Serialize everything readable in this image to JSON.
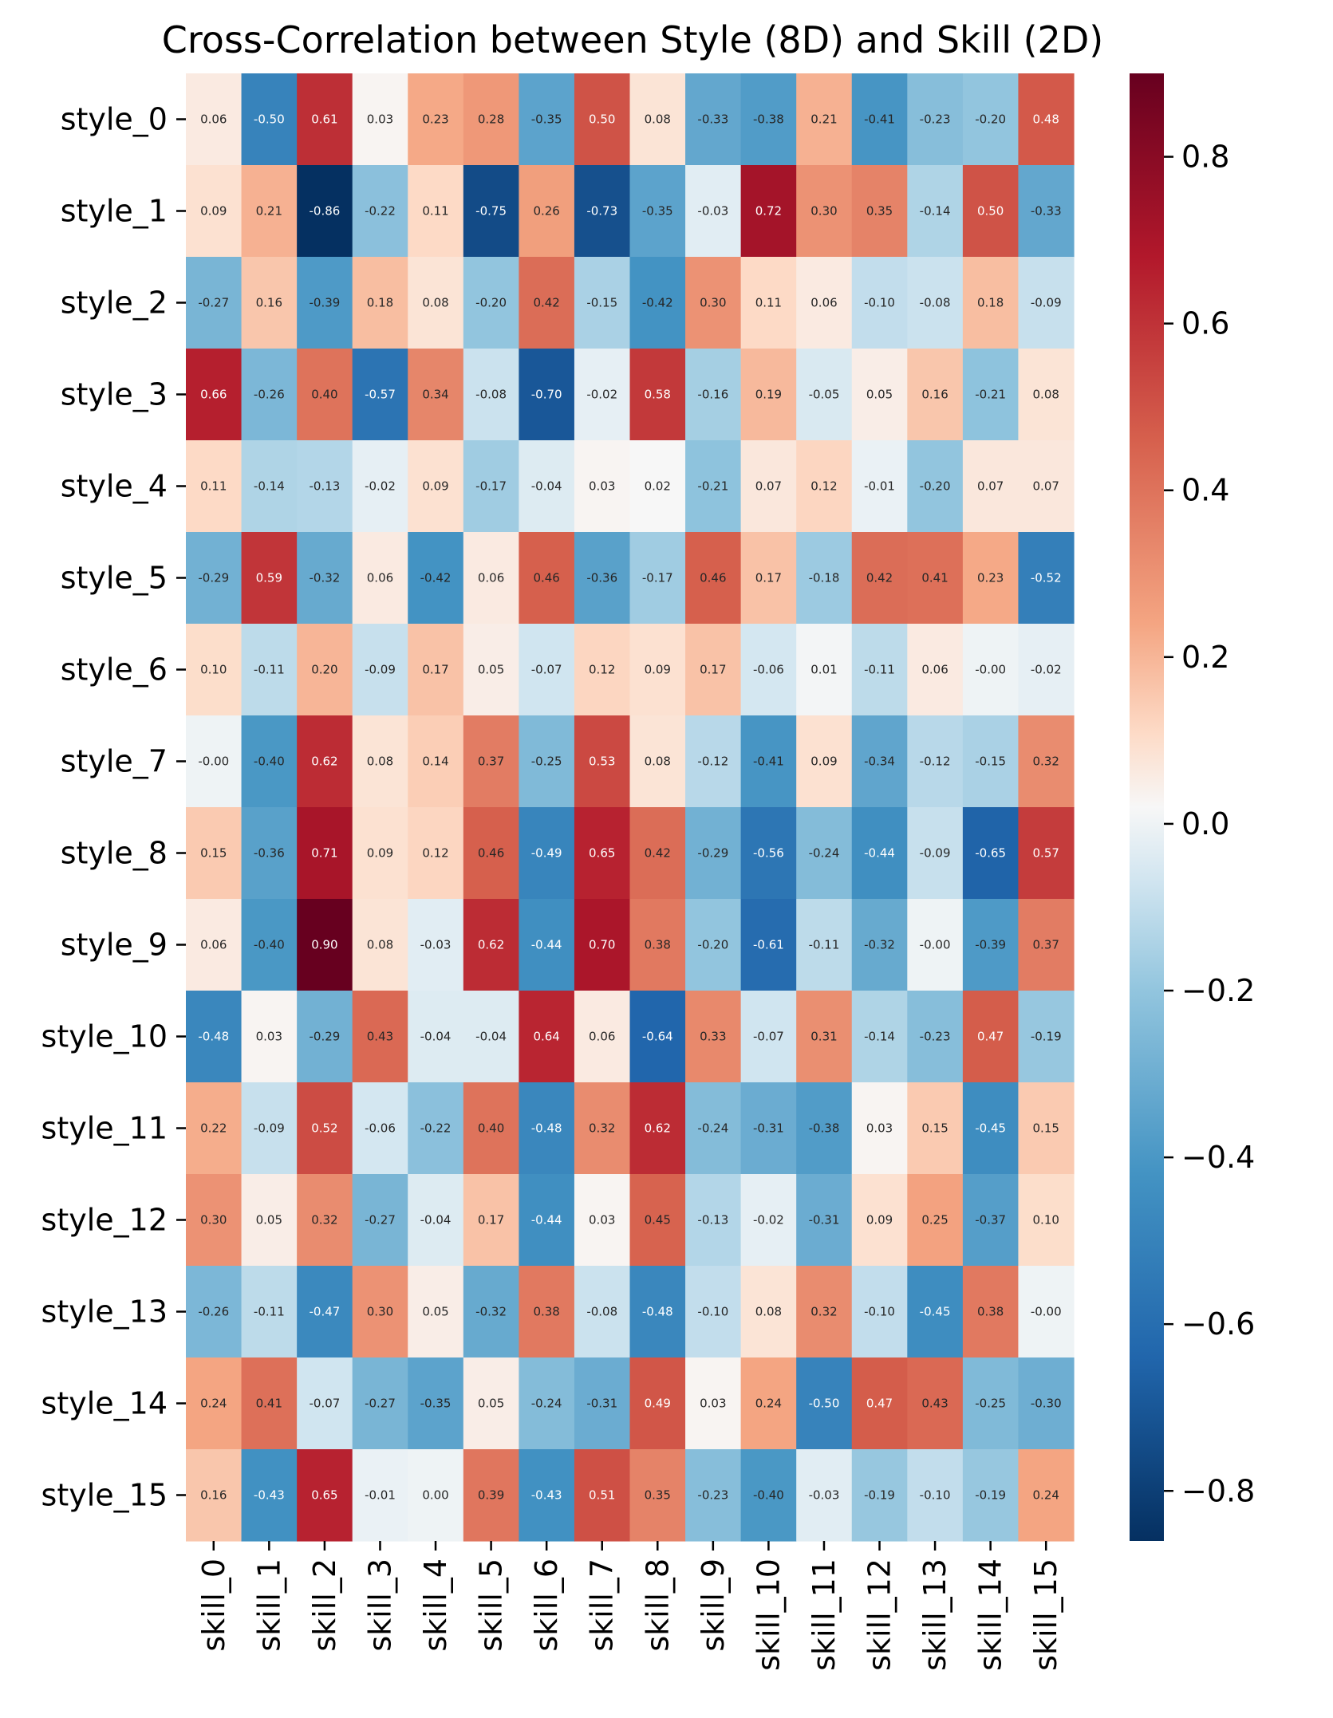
{
  "chart_data": {
    "type": "heatmap",
    "title": "Cross-Correlation between Style (8D) and Skill (2D)",
    "xlabel": "",
    "ylabel": "",
    "rows": [
      "style_0",
      "style_1",
      "style_2",
      "style_3",
      "style_4",
      "style_5",
      "style_6",
      "style_7",
      "style_8",
      "style_9",
      "style_10",
      "style_11",
      "style_12",
      "style_13",
      "style_14",
      "style_15"
    ],
    "columns": [
      "skill_0",
      "skill_1",
      "skill_2",
      "skill_3",
      "skill_4",
      "skill_5",
      "skill_6",
      "skill_7",
      "skill_8",
      "skill_9",
      "skill_10",
      "skill_11",
      "skill_12",
      "skill_13",
      "skill_14",
      "skill_15"
    ],
    "values": [
      [
        0.06,
        -0.5,
        0.61,
        0.03,
        0.23,
        0.28,
        -0.35,
        0.5,
        0.08,
        -0.33,
        -0.38,
        0.21,
        -0.41,
        -0.23,
        -0.2,
        0.48
      ],
      [
        0.09,
        0.21,
        -0.86,
        -0.22,
        0.11,
        -0.75,
        0.26,
        -0.73,
        -0.35,
        -0.03,
        0.72,
        0.3,
        0.35,
        -0.14,
        0.5,
        -0.33
      ],
      [
        -0.27,
        0.16,
        -0.39,
        0.18,
        0.08,
        -0.2,
        0.42,
        -0.15,
        -0.42,
        0.3,
        0.11,
        0.06,
        -0.1,
        -0.08,
        0.18,
        -0.09
      ],
      [
        0.66,
        -0.26,
        0.4,
        -0.57,
        0.34,
        -0.08,
        -0.7,
        -0.02,
        0.58,
        -0.16,
        0.19,
        -0.05,
        0.05,
        0.16,
        -0.21,
        0.08
      ],
      [
        0.11,
        -0.14,
        -0.13,
        -0.02,
        0.09,
        -0.17,
        -0.04,
        0.03,
        0.02,
        -0.21,
        0.07,
        0.12,
        -0.01,
        -0.2,
        0.07,
        0.07
      ],
      [
        -0.29,
        0.59,
        -0.32,
        0.06,
        -0.42,
        0.06,
        0.46,
        -0.36,
        -0.17,
        0.46,
        0.17,
        -0.18,
        0.42,
        0.41,
        0.23,
        -0.52
      ],
      [
        0.1,
        -0.11,
        0.2,
        -0.09,
        0.17,
        0.05,
        -0.07,
        0.12,
        0.09,
        0.17,
        -0.06,
        0.01,
        -0.11,
        0.06,
        -0.0,
        -0.02
      ],
      [
        -0.0,
        -0.4,
        0.62,
        0.08,
        0.14,
        0.37,
        -0.25,
        0.53,
        0.08,
        -0.12,
        -0.41,
        0.09,
        -0.34,
        -0.12,
        -0.15,
        0.32
      ],
      [
        0.15,
        -0.36,
        0.71,
        0.09,
        0.12,
        0.46,
        -0.49,
        0.65,
        0.42,
        -0.29,
        -0.56,
        -0.24,
        -0.44,
        -0.09,
        -0.65,
        0.57
      ],
      [
        0.06,
        -0.4,
        0.9,
        0.08,
        -0.03,
        0.62,
        -0.44,
        0.7,
        0.38,
        -0.2,
        -0.61,
        -0.11,
        -0.32,
        -0.0,
        -0.39,
        0.37
      ],
      [
        -0.48,
        0.03,
        -0.29,
        0.43,
        -0.04,
        -0.04,
        0.64,
        0.06,
        -0.64,
        0.33,
        -0.07,
        0.31,
        -0.14,
        -0.23,
        0.47,
        -0.19
      ],
      [
        0.22,
        -0.09,
        0.52,
        -0.06,
        -0.22,
        0.4,
        -0.48,
        0.32,
        0.62,
        -0.24,
        -0.31,
        -0.38,
        0.03,
        0.15,
        -0.45,
        0.15
      ],
      [
        0.3,
        0.05,
        0.32,
        -0.27,
        -0.04,
        0.17,
        -0.44,
        0.03,
        0.45,
        -0.13,
        -0.02,
        -0.31,
        0.09,
        0.25,
        -0.37,
        0.1
      ],
      [
        -0.26,
        -0.11,
        -0.47,
        0.3,
        0.05,
        -0.32,
        0.38,
        -0.08,
        -0.48,
        -0.1,
        0.08,
        0.32,
        -0.1,
        -0.45,
        0.38,
        -0.0
      ],
      [
        0.24,
        0.41,
        -0.07,
        -0.27,
        -0.35,
        0.05,
        -0.24,
        -0.31,
        0.49,
        0.03,
        0.24,
        -0.5,
        0.47,
        0.43,
        -0.25,
        -0.3
      ],
      [
        0.16,
        -0.43,
        0.65,
        -0.01,
        0.0,
        0.39,
        -0.43,
        0.51,
        0.35,
        -0.23,
        -0.4,
        -0.03,
        -0.19,
        -0.1,
        -0.19,
        0.24
      ]
    ],
    "value_labels": [
      [
        "0.06",
        "-0.50",
        "0.61",
        "0.03",
        "0.23",
        "0.28",
        "-0.35",
        "0.50",
        "0.08",
        "-0.33",
        "-0.38",
        "0.21",
        "-0.41",
        "-0.23",
        "-0.20",
        "0.48"
      ],
      [
        "0.09",
        "0.21",
        "-0.86",
        "-0.22",
        "0.11",
        "-0.75",
        "0.26",
        "-0.73",
        "-0.35",
        "-0.03",
        "0.72",
        "0.30",
        "0.35",
        "-0.14",
        "0.50",
        "-0.33"
      ],
      [
        "-0.27",
        "0.16",
        "-0.39",
        "0.18",
        "0.08",
        "-0.20",
        "0.42",
        "-0.15",
        "-0.42",
        "0.30",
        "0.11",
        "0.06",
        "-0.10",
        "-0.08",
        "0.18",
        "-0.09"
      ],
      [
        "0.66",
        "-0.26",
        "0.40",
        "-0.57",
        "0.34",
        "-0.08",
        "-0.70",
        "-0.02",
        "0.58",
        "-0.16",
        "0.19",
        "-0.05",
        "0.05",
        "0.16",
        "-0.21",
        "0.08"
      ],
      [
        "0.11",
        "-0.14",
        "-0.13",
        "-0.02",
        "0.09",
        "-0.17",
        "-0.04",
        "0.03",
        "0.02",
        "-0.21",
        "0.07",
        "0.12",
        "-0.01",
        "-0.20",
        "0.07",
        "0.07"
      ],
      [
        "-0.29",
        "0.59",
        "-0.32",
        "0.06",
        "-0.42",
        "0.06",
        "0.46",
        "-0.36",
        "-0.17",
        "0.46",
        "0.17",
        "-0.18",
        "0.42",
        "0.41",
        "0.23",
        "-0.52"
      ],
      [
        "0.10",
        "-0.11",
        "0.20",
        "-0.09",
        "0.17",
        "0.05",
        "-0.07",
        "0.12",
        "0.09",
        "0.17",
        "-0.06",
        "0.01",
        "-0.11",
        "0.06",
        "-0.00",
        "-0.02"
      ],
      [
        "-0.00",
        "-0.40",
        "0.62",
        "0.08",
        "0.14",
        "0.37",
        "-0.25",
        "0.53",
        "0.08",
        "-0.12",
        "-0.41",
        "0.09",
        "-0.34",
        "-0.12",
        "-0.15",
        "0.32"
      ],
      [
        "0.15",
        "-0.36",
        "0.71",
        "0.09",
        "0.12",
        "0.46",
        "-0.49",
        "0.65",
        "0.42",
        "-0.29",
        "-0.56",
        "-0.24",
        "-0.44",
        "-0.09",
        "-0.65",
        "0.57"
      ],
      [
        "0.06",
        "-0.40",
        "0.90",
        "0.08",
        "-0.03",
        "0.62",
        "-0.44",
        "0.70",
        "0.38",
        "-0.20",
        "-0.61",
        "-0.11",
        "-0.32",
        "-0.00",
        "-0.39",
        "0.37"
      ],
      [
        "-0.48",
        "0.03",
        "-0.29",
        "0.43",
        "-0.04",
        "-0.04",
        "0.64",
        "0.06",
        "-0.64",
        "0.33",
        "-0.07",
        "0.31",
        "-0.14",
        "-0.23",
        "0.47",
        "-0.19"
      ],
      [
        "0.22",
        "-0.09",
        "0.52",
        "-0.06",
        "-0.22",
        "0.40",
        "-0.48",
        "0.32",
        "0.62",
        "-0.24",
        "-0.31",
        "-0.38",
        "0.03",
        "0.15",
        "-0.45",
        "0.15"
      ],
      [
        "0.30",
        "0.05",
        "0.32",
        "-0.27",
        "-0.04",
        "0.17",
        "-0.44",
        "0.03",
        "0.45",
        "-0.13",
        "-0.02",
        "-0.31",
        "0.09",
        "0.25",
        "-0.37",
        "0.10"
      ],
      [
        "-0.26",
        "-0.11",
        "-0.47",
        "0.30",
        "0.05",
        "-0.32",
        "0.38",
        "-0.08",
        "-0.48",
        "-0.10",
        "0.08",
        "0.32",
        "-0.10",
        "-0.45",
        "0.38",
        "-0.00"
      ],
      [
        "0.24",
        "0.41",
        "-0.07",
        "-0.27",
        "-0.35",
        "0.05",
        "-0.24",
        "-0.31",
        "0.49",
        "0.03",
        "0.24",
        "-0.50",
        "0.47",
        "0.43",
        "-0.25",
        "-0.30"
      ],
      [
        "0.16",
        "-0.43",
        "0.65",
        "-0.01",
        "0.00",
        "0.39",
        "-0.43",
        "0.51",
        "0.35",
        "-0.23",
        "-0.40",
        "-0.03",
        "-0.19",
        "-0.10",
        "-0.19",
        "0.24"
      ]
    ],
    "colormap": "RdBu_r",
    "vmin": -0.86,
    "vmax": 0.9,
    "colorbar_ticks": [
      0.8,
      0.6,
      0.4,
      0.2,
      0.0,
      -0.2,
      -0.4,
      -0.6,
      -0.8
    ],
    "colorbar_tick_labels": [
      "0.8",
      "0.6",
      "0.4",
      "0.2",
      "0.0",
      "−0.2",
      "−0.4",
      "−0.6",
      "−0.8"
    ],
    "grid": false,
    "legend": "colorbar-right"
  }
}
